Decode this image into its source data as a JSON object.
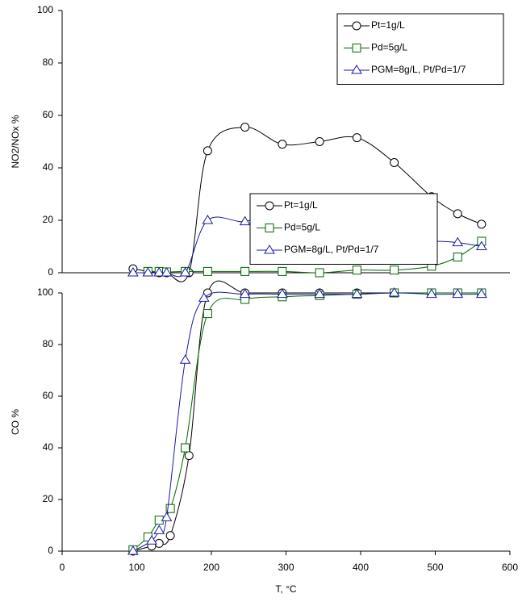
{
  "chart_data": [
    {
      "type": "line",
      "ylabel": "NO2/NOx %",
      "xlim": [
        0,
        600
      ],
      "ylim": [
        0,
        100
      ],
      "yticks": [
        0,
        20,
        40,
        60,
        80,
        100
      ],
      "legend": "upper right",
      "series": [
        {
          "name": "Pt=1g/L",
          "color": "#000000",
          "marker": "circle",
          "x": [
            95,
            115,
            130,
            140,
            170,
            195,
            245,
            295,
            345,
            395,
            445,
            495,
            530,
            562
          ],
          "values": [
            1.5,
            0.5,
            0,
            0,
            0,
            46.5,
            55.5,
            49,
            50,
            51.5,
            42,
            29,
            22.5,
            18.5
          ]
        },
        {
          "name": "Pd=5g/L",
          "color": "#006600",
          "marker": "square",
          "x": [
            115,
            130,
            140,
            165,
            195,
            245,
            295,
            345,
            395,
            445,
            495,
            530,
            562
          ],
          "values": [
            0.5,
            0.5,
            0.3,
            0.5,
            0.5,
            0.5,
            0.5,
            0,
            1,
            1,
            2.5,
            6,
            12
          ]
        },
        {
          "name": "PGM=8g/L, Pt/Pd=1/7",
          "color": "#1a1aa6",
          "marker": "triangle",
          "x": [
            95,
            115,
            130,
            140,
            165,
            195,
            245,
            290,
            345,
            395,
            445,
            495,
            530,
            562
          ],
          "values": [
            0,
            0,
            0,
            0,
            0,
            20,
            19.5,
            23.5,
            19,
            11,
            11,
            12,
            11.5,
            10
          ]
        }
      ]
    },
    {
      "type": "line",
      "xlabel": "T, °C",
      "ylabel": "CO %",
      "xlim": [
        0,
        600
      ],
      "xticks": [
        0,
        100,
        200,
        300,
        400,
        500,
        600
      ],
      "ylim": [
        0,
        100
      ],
      "yticks": [
        0,
        20,
        40,
        60,
        80,
        100
      ],
      "legend": "center right",
      "series": [
        {
          "name": "Pt=1g/L",
          "color": "#000000",
          "marker": "circle",
          "x": [
            95,
            120,
            130,
            145,
            170,
            195,
            245,
            295,
            345,
            395,
            445,
            495,
            530,
            562
          ],
          "values": [
            0,
            2,
            3,
            6,
            37,
            100,
            100,
            100,
            100,
            100,
            100,
            100,
            100,
            100
          ]
        },
        {
          "name": "Pd=5g/L",
          "color": "#006600",
          "marker": "square",
          "x": [
            95,
            115,
            130,
            145,
            165,
            195,
            245,
            295,
            345,
            395,
            445,
            495,
            530,
            562
          ],
          "values": [
            0.5,
            5.5,
            12,
            16.5,
            40,
            92,
            97.5,
            98.5,
            99,
            99.5,
            100,
            100,
            100,
            100
          ]
        },
        {
          "name": "PGM=8g/L, Pt/Pd=1/7",
          "color": "#1a1aa6",
          "marker": "triangle",
          "x": [
            95,
            120,
            130,
            140,
            165,
            190,
            245,
            295,
            345,
            395,
            445,
            495,
            530,
            562
          ],
          "values": [
            0,
            4,
            8,
            13,
            74,
            98,
            99.5,
            99.5,
            99.5,
            99.5,
            100,
            99.5,
            99.5,
            99.5
          ]
        }
      ]
    }
  ]
}
